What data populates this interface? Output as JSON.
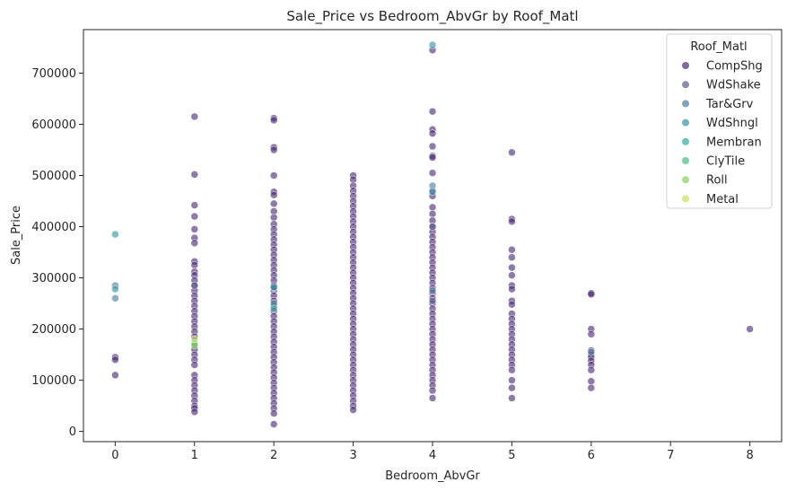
{
  "chart_data": {
    "type": "scatter",
    "title": "Sale_Price vs Bedroom_AbvGr by Roof_Matl",
    "xlabel": "Bedroom_AbvGr",
    "ylabel": "Sale_Price",
    "xlim": [
      -0.4,
      8.4
    ],
    "ylim": [
      -20000,
      785000
    ],
    "xticks": [
      0,
      1,
      2,
      3,
      4,
      5,
      6,
      7,
      8
    ],
    "yticks": [
      0,
      100000,
      200000,
      300000,
      400000,
      500000,
      600000,
      700000
    ],
    "grid": false,
    "legend": {
      "title": "Roof_Matl",
      "placement": "top-right"
    },
    "series": [
      {
        "name": "CompShg",
        "color": "#482878",
        "points": [
          [
            0,
            145000
          ],
          [
            0,
            140000
          ],
          [
            0,
            110000
          ],
          [
            1,
            615000
          ],
          [
            1,
            502000
          ],
          [
            1,
            442000
          ],
          [
            1,
            420000
          ],
          [
            1,
            395000
          ],
          [
            1,
            378000
          ],
          [
            1,
            368000
          ],
          [
            1,
            332000
          ],
          [
            1,
            325000
          ],
          [
            1,
            312000
          ],
          [
            1,
            305000
          ],
          [
            1,
            295000
          ],
          [
            1,
            285000
          ],
          [
            1,
            275000
          ],
          [
            1,
            265000
          ],
          [
            1,
            255000
          ],
          [
            1,
            245000
          ],
          [
            1,
            235000
          ],
          [
            1,
            225000
          ],
          [
            1,
            215000
          ],
          [
            1,
            205000
          ],
          [
            1,
            195000
          ],
          [
            1,
            185000
          ],
          [
            1,
            170000
          ],
          [
            1,
            160000
          ],
          [
            1,
            150000
          ],
          [
            1,
            140000
          ],
          [
            1,
            130000
          ],
          [
            1,
            110000
          ],
          [
            1,
            100000
          ],
          [
            1,
            90000
          ],
          [
            1,
            80000
          ],
          [
            1,
            70000
          ],
          [
            1,
            60000
          ],
          [
            1,
            50000
          ],
          [
            1,
            45000
          ],
          [
            1,
            38000
          ],
          [
            2,
            612000
          ],
          [
            2,
            608000
          ],
          [
            2,
            555000
          ],
          [
            2,
            550000
          ],
          [
            2,
            500000
          ],
          [
            2,
            468000
          ],
          [
            2,
            462000
          ],
          [
            2,
            445000
          ],
          [
            2,
            430000
          ],
          [
            2,
            418000
          ],
          [
            2,
            405000
          ],
          [
            2,
            395000
          ],
          [
            2,
            385000
          ],
          [
            2,
            375000
          ],
          [
            2,
            365000
          ],
          [
            2,
            355000
          ],
          [
            2,
            345000
          ],
          [
            2,
            335000
          ],
          [
            2,
            325000
          ],
          [
            2,
            315000
          ],
          [
            2,
            305000
          ],
          [
            2,
            295000
          ],
          [
            2,
            285000
          ],
          [
            2,
            275000
          ],
          [
            2,
            265000
          ],
          [
            2,
            255000
          ],
          [
            2,
            245000
          ],
          [
            2,
            235000
          ],
          [
            2,
            225000
          ],
          [
            2,
            215000
          ],
          [
            2,
            205000
          ],
          [
            2,
            195000
          ],
          [
            2,
            185000
          ],
          [
            2,
            175000
          ],
          [
            2,
            165000
          ],
          [
            2,
            155000
          ],
          [
            2,
            145000
          ],
          [
            2,
            135000
          ],
          [
            2,
            125000
          ],
          [
            2,
            115000
          ],
          [
            2,
            105000
          ],
          [
            2,
            95000
          ],
          [
            2,
            85000
          ],
          [
            2,
            75000
          ],
          [
            2,
            65000
          ],
          [
            2,
            55000
          ],
          [
            2,
            45000
          ],
          [
            2,
            35000
          ],
          [
            2,
            14000
          ],
          [
            3,
            500000
          ],
          [
            3,
            492000
          ],
          [
            3,
            480000
          ],
          [
            3,
            470000
          ],
          [
            3,
            460000
          ],
          [
            3,
            450000
          ],
          [
            3,
            440000
          ],
          [
            3,
            430000
          ],
          [
            3,
            420000
          ],
          [
            3,
            410000
          ],
          [
            3,
            400000
          ],
          [
            3,
            390000
          ],
          [
            3,
            380000
          ],
          [
            3,
            370000
          ],
          [
            3,
            360000
          ],
          [
            3,
            350000
          ],
          [
            3,
            340000
          ],
          [
            3,
            330000
          ],
          [
            3,
            320000
          ],
          [
            3,
            310000
          ],
          [
            3,
            300000
          ],
          [
            3,
            290000
          ],
          [
            3,
            280000
          ],
          [
            3,
            270000
          ],
          [
            3,
            260000
          ],
          [
            3,
            250000
          ],
          [
            3,
            240000
          ],
          [
            3,
            230000
          ],
          [
            3,
            220000
          ],
          [
            3,
            210000
          ],
          [
            3,
            200000
          ],
          [
            3,
            190000
          ],
          [
            3,
            180000
          ],
          [
            3,
            170000
          ],
          [
            3,
            160000
          ],
          [
            3,
            150000
          ],
          [
            3,
            140000
          ],
          [
            3,
            130000
          ],
          [
            3,
            120000
          ],
          [
            3,
            110000
          ],
          [
            3,
            100000
          ],
          [
            3,
            90000
          ],
          [
            3,
            80000
          ],
          [
            3,
            70000
          ],
          [
            3,
            60000
          ],
          [
            3,
            50000
          ],
          [
            3,
            42000
          ],
          [
            4,
            745000
          ],
          [
            4,
            625000
          ],
          [
            4,
            590000
          ],
          [
            4,
            582000
          ],
          [
            4,
            557000
          ],
          [
            4,
            538000
          ],
          [
            4,
            535000
          ],
          [
            4,
            505000
          ],
          [
            4,
            470000
          ],
          [
            4,
            460000
          ],
          [
            4,
            438000
          ],
          [
            4,
            425000
          ],
          [
            4,
            412000
          ],
          [
            4,
            400000
          ],
          [
            4,
            390000
          ],
          [
            4,
            380000
          ],
          [
            4,
            370000
          ],
          [
            4,
            360000
          ],
          [
            4,
            350000
          ],
          [
            4,
            340000
          ],
          [
            4,
            330000
          ],
          [
            4,
            320000
          ],
          [
            4,
            310000
          ],
          [
            4,
            300000
          ],
          [
            4,
            290000
          ],
          [
            4,
            280000
          ],
          [
            4,
            270000
          ],
          [
            4,
            260000
          ],
          [
            4,
            250000
          ],
          [
            4,
            240000
          ],
          [
            4,
            230000
          ],
          [
            4,
            220000
          ],
          [
            4,
            210000
          ],
          [
            4,
            200000
          ],
          [
            4,
            190000
          ],
          [
            4,
            180000
          ],
          [
            4,
            170000
          ],
          [
            4,
            160000
          ],
          [
            4,
            150000
          ],
          [
            4,
            140000
          ],
          [
            4,
            130000
          ],
          [
            4,
            120000
          ],
          [
            4,
            110000
          ],
          [
            4,
            100000
          ],
          [
            4,
            90000
          ],
          [
            4,
            80000
          ],
          [
            4,
            65000
          ],
          [
            5,
            545000
          ],
          [
            5,
            415000
          ],
          [
            5,
            410000
          ],
          [
            5,
            355000
          ],
          [
            5,
            340000
          ],
          [
            5,
            320000
          ],
          [
            5,
            305000
          ],
          [
            5,
            285000
          ],
          [
            5,
            278000
          ],
          [
            5,
            255000
          ],
          [
            5,
            248000
          ],
          [
            5,
            230000
          ],
          [
            5,
            220000
          ],
          [
            5,
            210000
          ],
          [
            5,
            200000
          ],
          [
            5,
            190000
          ],
          [
            5,
            180000
          ],
          [
            5,
            170000
          ],
          [
            5,
            160000
          ],
          [
            5,
            150000
          ],
          [
            5,
            140000
          ],
          [
            5,
            130000
          ],
          [
            5,
            120000
          ],
          [
            5,
            100000
          ],
          [
            5,
            85000
          ],
          [
            5,
            65000
          ],
          [
            6,
            270000
          ],
          [
            6,
            268000
          ],
          [
            6,
            200000
          ],
          [
            6,
            190000
          ],
          [
            6,
            158000
          ],
          [
            6,
            150000
          ],
          [
            6,
            145000
          ],
          [
            6,
            138000
          ],
          [
            6,
            130000
          ],
          [
            6,
            120000
          ],
          [
            6,
            98000
          ],
          [
            6,
            85000
          ],
          [
            8,
            200000
          ]
        ]
      },
      {
        "name": "WdShake",
        "color": "#5b5e8f",
        "points": [
          [
            1,
            285000
          ],
          [
            2,
            280000
          ],
          [
            4,
            400000
          ],
          [
            4,
            255000
          ]
        ]
      },
      {
        "name": "Tar&Grv",
        "color": "#4a7ea0",
        "points": [
          [
            0,
            285000
          ],
          [
            0,
            260000
          ],
          [
            2,
            250000
          ],
          [
            4,
            480000
          ],
          [
            4,
            275000
          ],
          [
            6,
            155000
          ]
        ]
      },
      {
        "name": "WdShngl",
        "color": "#2d97a6",
        "points": [
          [
            0,
            385000
          ],
          [
            0,
            278000
          ],
          [
            2,
            282000
          ],
          [
            4,
            755000
          ],
          [
            4,
            468000
          ]
        ]
      },
      {
        "name": "Membran",
        "color": "#2fac9a",
        "points": [
          [
            2,
            240000
          ]
        ]
      },
      {
        "name": "ClyTile",
        "color": "#45c27f",
        "points": [
          [
            1,
            172000
          ]
        ]
      },
      {
        "name": "Roll",
        "color": "#86d456",
        "points": [
          [
            1,
            168000
          ]
        ]
      },
      {
        "name": "Metal",
        "color": "#c4e05a",
        "points": [
          [
            1,
            180000
          ]
        ]
      }
    ]
  }
}
